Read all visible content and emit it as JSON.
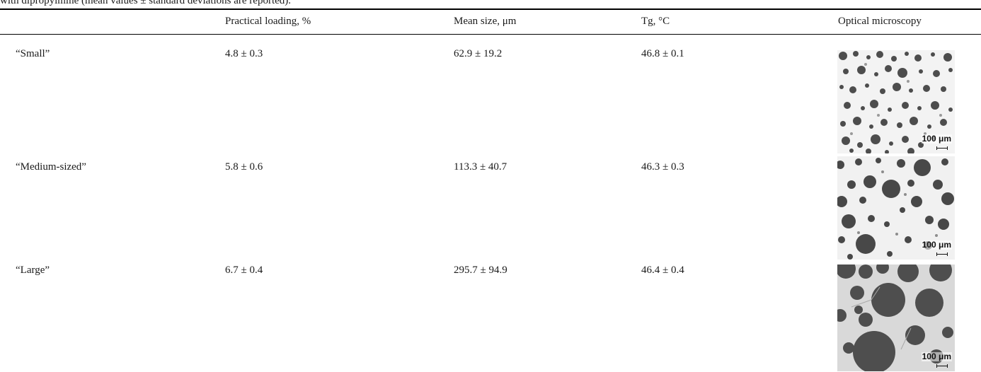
{
  "caption": "with dipropylmine (mean values ± standard deviations are reported).",
  "header": {
    "c1": "",
    "c2": "Practical loading, %",
    "c3": "Mean size, μm",
    "c4": "Tg, °C",
    "c5": "Optical microscopy"
  },
  "rows": [
    {
      "name": "“Small”",
      "loading": "4.8 ± 0.3",
      "size": "62.9 ± 19.2",
      "tg": "46.8 ± 0.1",
      "scale": "100 μm"
    },
    {
      "name": "“Medium-sized”",
      "loading": "5.8 ± 0.6",
      "size": "113.3 ± 40.7",
      "tg": "46.3 ± 0.3",
      "scale": "100 μm"
    },
    {
      "name": "“Large”",
      "loading": "6.7 ± 0.4",
      "size": "295.7 ± 94.9",
      "tg": "46.4 ± 0.4",
      "scale": "100 μm"
    }
  ],
  "colors": {
    "particle": "#4a4a4a",
    "background_small": "#f4f4f4",
    "background_large": "#dcdcdc"
  }
}
